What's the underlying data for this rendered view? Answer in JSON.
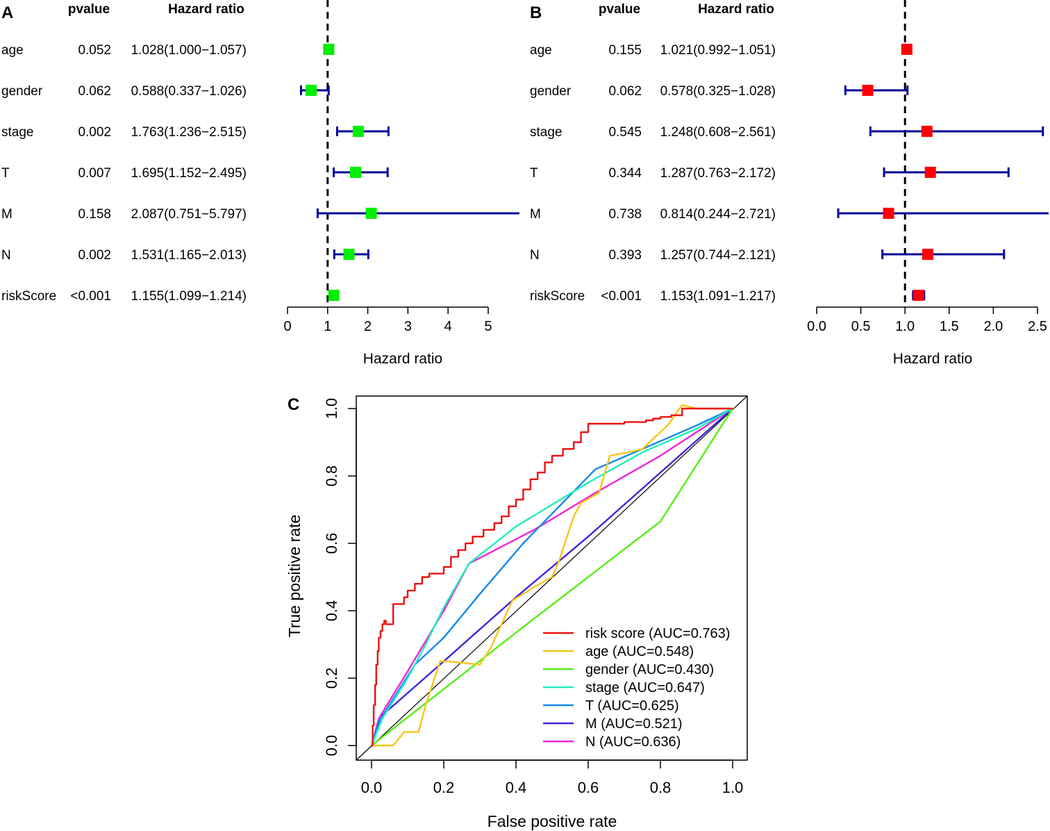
{
  "panel_a": {
    "label": "A",
    "headers": {
      "pvalue": "pvalue",
      "hr": "Hazard ratio"
    },
    "marker_color": "#00ee00",
    "line_color": "#000099",
    "chart_data": {
      "type": "forest",
      "xlabel": "Hazard ratio",
      "xlim": [
        0,
        5
      ],
      "ticks": [
        "0",
        "1",
        "2",
        "3",
        "4",
        "5"
      ],
      "reference_line": 1,
      "rows": [
        {
          "name": "age",
          "pvalue": "0.052",
          "hr_text": "1.028(1.000−1.057)",
          "hr": 1.028,
          "lo": 1.0,
          "hi": 1.057
        },
        {
          "name": "gender",
          "pvalue": "0.062",
          "hr_text": "0.588(0.337−1.026)",
          "hr": 0.588,
          "lo": 0.337,
          "hi": 1.026
        },
        {
          "name": "stage",
          "pvalue": "0.002",
          "hr_text": "1.763(1.236−2.515)",
          "hr": 1.763,
          "lo": 1.236,
          "hi": 2.515
        },
        {
          "name": "T",
          "pvalue": "0.007",
          "hr_text": "1.695(1.152−2.495)",
          "hr": 1.695,
          "lo": 1.152,
          "hi": 2.495
        },
        {
          "name": "M",
          "pvalue": "0.158",
          "hr_text": "2.087(0.751−5.797)",
          "hr": 2.087,
          "lo": 0.751,
          "hi": 5.797
        },
        {
          "name": "N",
          "pvalue": "0.002",
          "hr_text": "1.531(1.165−2.013)",
          "hr": 1.531,
          "lo": 1.165,
          "hi": 2.013
        },
        {
          "name": "riskScore",
          "pvalue": "<0.001",
          "hr_text": "1.155(1.099−1.214)",
          "hr": 1.155,
          "lo": 1.099,
          "hi": 1.214
        }
      ]
    }
  },
  "panel_b": {
    "label": "B",
    "headers": {
      "pvalue": "pvalue",
      "hr": "Hazard ratio"
    },
    "marker_color": "#ff0000",
    "line_color": "#000099",
    "chart_data": {
      "type": "forest",
      "xlabel": "Hazard ratio",
      "xlim": [
        0,
        2.5
      ],
      "ticks": [
        "0.0",
        "0.5",
        "1.0",
        "1.5",
        "2.0",
        "2.5"
      ],
      "reference_line": 1,
      "rows": [
        {
          "name": "age",
          "pvalue": "0.155",
          "hr_text": "1.021(0.992−1.051)",
          "hr": 1.021,
          "lo": 0.992,
          "hi": 1.051
        },
        {
          "name": "gender",
          "pvalue": "0.062",
          "hr_text": "0.578(0.325−1.028)",
          "hr": 0.578,
          "lo": 0.325,
          "hi": 1.028
        },
        {
          "name": "stage",
          "pvalue": "0.545",
          "hr_text": "1.248(0.608−2.561)",
          "hr": 1.248,
          "lo": 0.608,
          "hi": 2.561
        },
        {
          "name": "T",
          "pvalue": "0.344",
          "hr_text": "1.287(0.763−2.172)",
          "hr": 1.287,
          "lo": 0.763,
          "hi": 2.172
        },
        {
          "name": "M",
          "pvalue": "0.738",
          "hr_text": "0.814(0.244−2.721)",
          "hr": 0.814,
          "lo": 0.244,
          "hi": 2.721
        },
        {
          "name": "N",
          "pvalue": "0.393",
          "hr_text": "1.257(0.744−2.121)",
          "hr": 1.257,
          "lo": 0.744,
          "hi": 2.121
        },
        {
          "name": "riskScore",
          "pvalue": "<0.001",
          "hr_text": "1.153(1.091−1.217)",
          "hr": 1.153,
          "lo": 1.091,
          "hi": 1.217
        }
      ]
    }
  },
  "panel_c": {
    "label": "C",
    "chart_data": {
      "type": "line",
      "xlabel": "False positive rate",
      "ylabel": "True positive rate",
      "xlim": [
        0,
        1
      ],
      "ylim": [
        0,
        1
      ],
      "xticks": [
        "0.0",
        "0.2",
        "0.4",
        "0.6",
        "0.8",
        "1.0"
      ],
      "yticks": [
        "0.0",
        "0.2",
        "0.4",
        "0.6",
        "0.8",
        "1.0"
      ],
      "diagonal": true,
      "legend_position": "bottom-right",
      "series": [
        {
          "name": "risk score",
          "label": "risk score (AUC=0.763)",
          "color": "#ee1111",
          "x": [
            0,
            0.003,
            0.003,
            0.006,
            0.006,
            0.01,
            0.01,
            0.013,
            0.013,
            0.017,
            0.017,
            0.02,
            0.02,
            0.025,
            0.025,
            0.03,
            0.03,
            0.035,
            0.035,
            0.04,
            0.04,
            0.06,
            0.06,
            0.09,
            0.09,
            0.1,
            0.1,
            0.12,
            0.12,
            0.14,
            0.14,
            0.16,
            0.16,
            0.2,
            0.2,
            0.22,
            0.22,
            0.24,
            0.24,
            0.26,
            0.26,
            0.28,
            0.28,
            0.31,
            0.31,
            0.34,
            0.34,
            0.36,
            0.36,
            0.38,
            0.38,
            0.4,
            0.4,
            0.42,
            0.42,
            0.44,
            0.44,
            0.46,
            0.46,
            0.48,
            0.48,
            0.5,
            0.5,
            0.53,
            0.53,
            0.56,
            0.56,
            0.58,
            0.58,
            0.6,
            0.6,
            0.7,
            0.7,
            0.76,
            0.76,
            0.78,
            0.78,
            0.8,
            0.8,
            0.83,
            0.83,
            0.86,
            0.86,
            1.0
          ],
          "y": [
            0,
            0,
            0.06,
            0.06,
            0.12,
            0.12,
            0.18,
            0.18,
            0.24,
            0.24,
            0.28,
            0.28,
            0.32,
            0.32,
            0.34,
            0.34,
            0.36,
            0.36,
            0.37,
            0.37,
            0.36,
            0.36,
            0.42,
            0.42,
            0.44,
            0.44,
            0.46,
            0.46,
            0.48,
            0.48,
            0.5,
            0.5,
            0.51,
            0.51,
            0.53,
            0.53,
            0.56,
            0.56,
            0.58,
            0.58,
            0.6,
            0.6,
            0.62,
            0.62,
            0.64,
            0.64,
            0.66,
            0.66,
            0.68,
            0.68,
            0.71,
            0.71,
            0.73,
            0.73,
            0.76,
            0.76,
            0.79,
            0.79,
            0.81,
            0.81,
            0.84,
            0.84,
            0.86,
            0.86,
            0.88,
            0.88,
            0.9,
            0.9,
            0.93,
            0.93,
            0.955,
            0.955,
            0.96,
            0.96,
            0.965,
            0.965,
            0.97,
            0.97,
            0.975,
            0.975,
            0.98,
            0.98,
            1.0,
            1.0
          ]
        },
        {
          "name": "age",
          "label": "age (AUC=0.548)",
          "color": "#f5c518",
          "x": [
            0,
            0.005,
            0.06,
            0.09,
            0.13,
            0.15,
            0.19,
            0.21,
            0.3,
            0.33,
            0.39,
            0.45,
            0.5,
            0.52,
            0.56,
            0.58,
            0.63,
            0.66,
            0.71,
            0.75,
            0.79,
            0.82,
            0.84,
            0.86,
            0.9,
            1.0
          ],
          "y": [
            0,
            0.0,
            0.0,
            0.04,
            0.04,
            0.12,
            0.25,
            0.25,
            0.24,
            0.29,
            0.43,
            0.47,
            0.5,
            0.55,
            0.68,
            0.72,
            0.75,
            0.86,
            0.87,
            0.88,
            0.92,
            0.95,
            0.98,
            1.01,
            1.0,
            1.0
          ]
        },
        {
          "name": "gender",
          "label": "gender (AUC=0.430)",
          "color": "#55ee11",
          "x": [
            0,
            0.43,
            0.8,
            1.0
          ],
          "y": [
            0,
            0.36,
            0.665,
            1.0
          ]
        },
        {
          "name": "stage",
          "label": "stage (AUC=0.647)",
          "color": "#22eebb",
          "x": [
            0,
            0.03,
            0.1,
            0.15,
            0.2,
            0.27,
            0.4,
            0.6,
            0.75,
            0.9,
            1.0
          ],
          "y": [
            0,
            0.08,
            0.2,
            0.3,
            0.41,
            0.54,
            0.65,
            0.78,
            0.87,
            0.94,
            1.0
          ]
        },
        {
          "name": "T",
          "label": "T (AUC=0.625)",
          "color": "#1188ee",
          "x": [
            0,
            0.02,
            0.12,
            0.2,
            0.3,
            0.42,
            0.62,
            0.75,
            0.9,
            1.0
          ],
          "y": [
            0,
            0.07,
            0.24,
            0.32,
            0.45,
            0.6,
            0.82,
            0.88,
            0.95,
            1.0
          ]
        },
        {
          "name": "M",
          "label": "M (AUC=0.521)",
          "color": "#4422dd",
          "x": [
            0,
            0.03,
            0.2,
            0.4,
            0.6,
            0.8,
            1.0
          ],
          "y": [
            0,
            0.09,
            0.25,
            0.44,
            0.62,
            0.81,
            1.0
          ]
        },
        {
          "name": "N",
          "label": "N (AUC=0.636)",
          "color": "#ee22dd",
          "x": [
            0,
            0.02,
            0.1,
            0.2,
            0.27,
            0.45,
            0.62,
            0.8,
            1.0
          ],
          "y": [
            0,
            0.08,
            0.22,
            0.4,
            0.54,
            0.64,
            0.75,
            0.86,
            1.0
          ]
        }
      ]
    }
  }
}
